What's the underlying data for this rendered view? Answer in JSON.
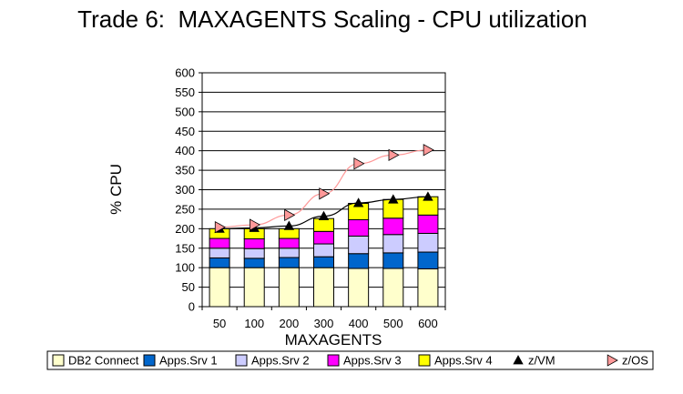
{
  "chart_data": {
    "type": "bar",
    "title": "Trade 6:  MAXAGENTS Scaling - CPU utilization",
    "xlabel": "MAXAGENTS",
    "ylabel": "% CPU",
    "ylim": [
      0,
      600
    ],
    "yticks": [
      "0",
      "50",
      "100",
      "150",
      "200",
      "250",
      "300",
      "350",
      "400",
      "450",
      "500",
      "550",
      "600"
    ],
    "categories": [
      "50",
      "100",
      "200",
      "300",
      "400",
      "500",
      "600"
    ],
    "grid": true,
    "legend_position": "bottom",
    "stacked_series": [
      {
        "name": "DB2 Connect",
        "color": "#ffffcc",
        "values": [
          100,
          100,
          100,
          100,
          98,
          98,
          97
        ]
      },
      {
        "name": "Apps.Srv 1",
        "color": "#0066cc",
        "values": [
          25,
          24,
          26,
          28,
          38,
          40,
          43
        ]
      },
      {
        "name": "Apps.Srv 2",
        "color": "#ccccff",
        "values": [
          25,
          25,
          24,
          33,
          45,
          47,
          48
        ]
      },
      {
        "name": "Apps.Srv 3",
        "color": "#ff00ff",
        "values": [
          25,
          25,
          25,
          32,
          42,
          42,
          47
        ]
      },
      {
        "name": "Apps.Srv 4",
        "color": "#ffff00",
        "values": [
          25,
          26,
          25,
          33,
          42,
          48,
          47
        ]
      }
    ],
    "line_series": [
      {
        "name": "z/VM",
        "color": "#000000",
        "marker": "triangle-up",
        "values": [
          200,
          202,
          207,
          232,
          266,
          275,
          282
        ]
      },
      {
        "name": "z/OS",
        "color": "#ff9999",
        "marker": "triangle-right",
        "values": [
          204,
          210,
          235,
          290,
          367,
          389,
          402
        ]
      }
    ]
  }
}
